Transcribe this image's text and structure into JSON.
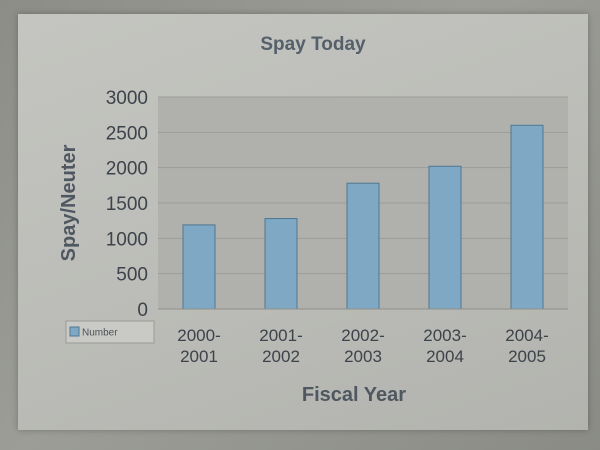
{
  "chart_data": {
    "type": "bar",
    "title": "Spay Today",
    "xlabel": "Fiscal Year",
    "ylabel": "Spay/Neuter",
    "categories": [
      [
        "2000-",
        "2001"
      ],
      [
        "2001-",
        "2002"
      ],
      [
        "2002-",
        "2003"
      ],
      [
        "2003-",
        "2004"
      ],
      [
        "2004-",
        "2005"
      ]
    ],
    "series": [
      {
        "name": "Number",
        "values": [
          1190,
          1280,
          1780,
          2020,
          2600
        ]
      }
    ],
    "ylim": [
      0,
      3000
    ],
    "yticks": [
      "0",
      "500",
      "1000",
      "1500",
      "2000",
      "2500",
      "3000"
    ],
    "grid": true,
    "legend_position": "bottom-left",
    "colors": {
      "bar_fill": "#7ea8c4",
      "bar_stroke": "#4e7792",
      "plot_bg": "#b0b1ac",
      "gridline": "#9c9d98",
      "title": "#55606b"
    }
  }
}
